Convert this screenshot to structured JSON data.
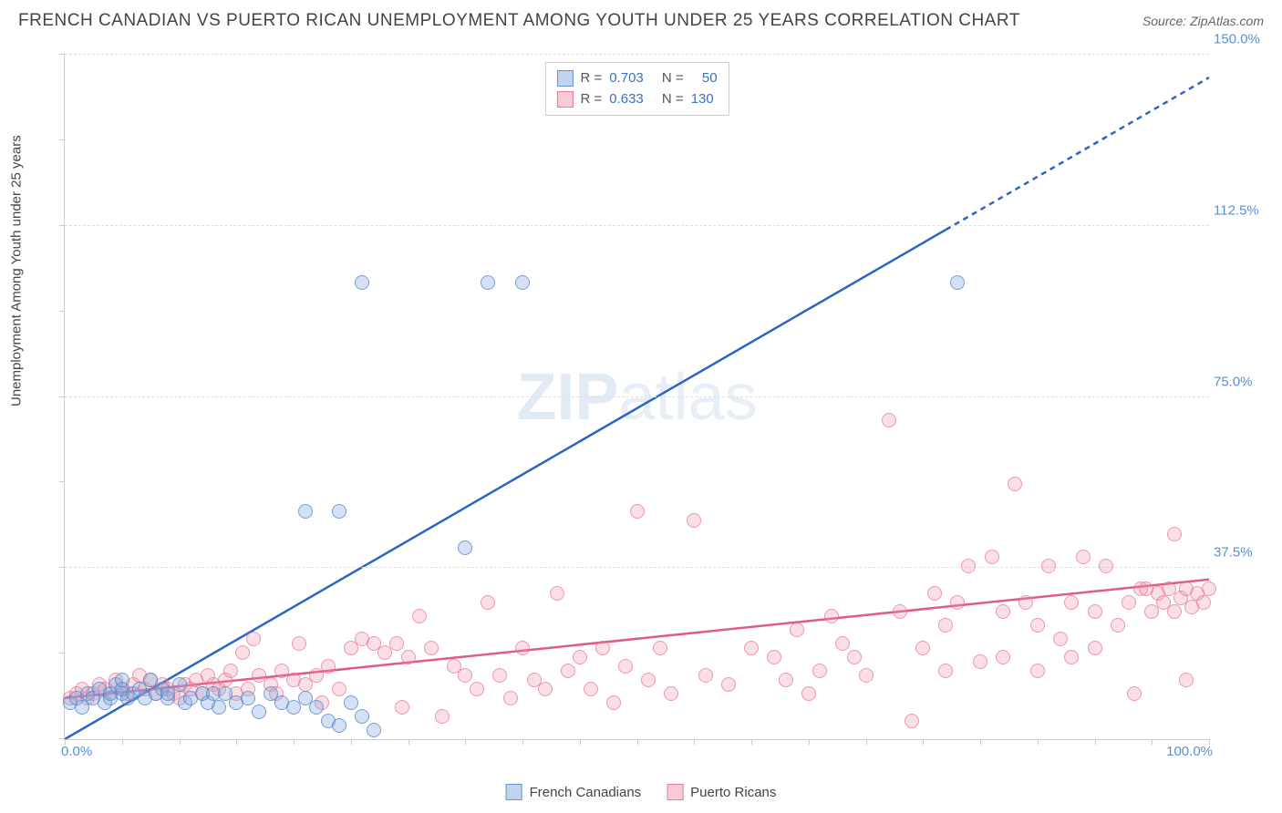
{
  "header": {
    "title": "FRENCH CANADIAN VS PUERTO RICAN UNEMPLOYMENT AMONG YOUTH UNDER 25 YEARS CORRELATION CHART",
    "source_prefix": "Source: ",
    "source_name": "ZipAtlas.com"
  },
  "axis": {
    "y_title": "Unemployment Among Youth under 25 years",
    "x_min_label": "0.0%",
    "x_max_label": "100.0%",
    "y_labels": [
      "37.5%",
      "75.0%",
      "112.5%",
      "150.0%"
    ],
    "y_positions_pct": [
      25,
      50,
      75,
      100
    ],
    "x_tick_positions_pct": [
      0,
      5,
      10,
      15,
      20,
      25,
      30,
      35,
      40,
      45,
      50,
      55,
      60,
      65,
      70,
      75,
      80,
      85,
      90,
      95,
      100
    ],
    "y_tick_positions_pct": [
      0,
      12.5,
      25,
      37.5,
      50,
      62.5,
      75,
      87.5,
      100
    ]
  },
  "stats": {
    "rows": [
      {
        "swatch": "blue",
        "r_label": "R =",
        "r_val": "0.703",
        "n_label": "N =",
        "n_val": "50"
      },
      {
        "swatch": "pink",
        "r_label": "R =",
        "r_val": "0.633",
        "n_label": "N =",
        "n_val": "130"
      }
    ]
  },
  "legend": {
    "items": [
      {
        "swatch": "blue",
        "label": "French Canadians"
      },
      {
        "swatch": "pink",
        "label": "Puerto Ricans"
      }
    ]
  },
  "watermark": {
    "part1": "ZIP",
    "part2": "atlas"
  },
  "chart": {
    "type": "scatter",
    "xlim": [
      0,
      100
    ],
    "ylim": [
      0,
      150
    ],
    "background_color": "#ffffff",
    "grid_color": "#e0e0e0",
    "marker_radius": 8,
    "colors": {
      "blue_fill": "rgba(130,170,220,0.35)",
      "blue_stroke": "rgba(80,130,200,0.7)",
      "pink_fill": "rgba(240,150,170,0.3)",
      "pink_stroke": "rgba(230,100,140,0.6)",
      "blue_line": "#2b66c4",
      "pink_line": "#e05a8a",
      "axis_label": "#5b8fd6"
    },
    "trend_lines": {
      "blue": {
        "x1": 0,
        "y1": 0,
        "x2": 100,
        "y2": 145,
        "solid_until_x": 77,
        "stroke_width": 2.5
      },
      "pink": {
        "x1": 0,
        "y1": 9,
        "x2": 100,
        "y2": 35,
        "stroke_width": 2.5
      }
    },
    "series": {
      "blue": [
        [
          0.5,
          8
        ],
        [
          1,
          9
        ],
        [
          1.5,
          7
        ],
        [
          2,
          10
        ],
        [
          2.5,
          9
        ],
        [
          3,
          11
        ],
        [
          3.5,
          8
        ],
        [
          4,
          10
        ],
        [
          4,
          9
        ],
        [
          4.5,
          12
        ],
        [
          5,
          10
        ],
        [
          5,
          11
        ],
        [
          5.5,
          9
        ],
        [
          6,
          10
        ],
        [
          6.5,
          11
        ],
        [
          7,
          9
        ],
        [
          7.5,
          13
        ],
        [
          8,
          10
        ],
        [
          8.5,
          11
        ],
        [
          9,
          9
        ],
        [
          9,
          10
        ],
        [
          10,
          12
        ],
        [
          10.5,
          8
        ],
        [
          11,
          9
        ],
        [
          12,
          10
        ],
        [
          12.5,
          8
        ],
        [
          13,
          10
        ],
        [
          13.5,
          7
        ],
        [
          14,
          10
        ],
        [
          15,
          8
        ],
        [
          16,
          9
        ],
        [
          17,
          6
        ],
        [
          18,
          10
        ],
        [
          19,
          8
        ],
        [
          20,
          7
        ],
        [
          21,
          9
        ],
        [
          22,
          7
        ],
        [
          23,
          4
        ],
        [
          24,
          3
        ],
        [
          25,
          8
        ],
        [
          26,
          5
        ],
        [
          27,
          2
        ],
        [
          21,
          50
        ],
        [
          24,
          50
        ],
        [
          35,
          42
        ],
        [
          26,
          100
        ],
        [
          37,
          100
        ],
        [
          40,
          100
        ],
        [
          78,
          100
        ],
        [
          5,
          13
        ]
      ],
      "pink": [
        [
          0.5,
          9
        ],
        [
          1,
          10
        ],
        [
          1.5,
          11
        ],
        [
          2,
          9
        ],
        [
          2.5,
          10
        ],
        [
          3,
          12
        ],
        [
          3.5,
          11
        ],
        [
          4,
          10
        ],
        [
          4.5,
          13
        ],
        [
          5,
          11
        ],
        [
          5.5,
          10
        ],
        [
          6,
          12
        ],
        [
          6.5,
          14
        ],
        [
          7,
          11
        ],
        [
          7.5,
          13
        ],
        [
          8,
          10
        ],
        [
          8.5,
          12
        ],
        [
          9,
          11
        ],
        [
          9.5,
          10
        ],
        [
          10,
          9
        ],
        [
          10.5,
          12
        ],
        [
          11,
          11
        ],
        [
          11.5,
          13
        ],
        [
          12,
          10
        ],
        [
          12.5,
          14
        ],
        [
          13,
          12
        ],
        [
          13.5,
          11
        ],
        [
          14,
          13
        ],
        [
          14.5,
          15
        ],
        [
          15,
          10
        ],
        [
          15.5,
          19
        ],
        [
          16,
          11
        ],
        [
          16.5,
          22
        ],
        [
          17,
          14
        ],
        [
          18,
          12
        ],
        [
          18.5,
          10
        ],
        [
          19,
          15
        ],
        [
          20,
          13
        ],
        [
          20.5,
          21
        ],
        [
          21,
          12
        ],
        [
          22,
          14
        ],
        [
          22.5,
          8
        ],
        [
          23,
          16
        ],
        [
          24,
          11
        ],
        [
          25,
          20
        ],
        [
          26,
          22
        ],
        [
          27,
          21
        ],
        [
          28,
          19
        ],
        [
          29,
          21
        ],
        [
          29.5,
          7
        ],
        [
          30,
          18
        ],
        [
          31,
          27
        ],
        [
          32,
          20
        ],
        [
          33,
          5
        ],
        [
          34,
          16
        ],
        [
          35,
          14
        ],
        [
          36,
          11
        ],
        [
          37,
          30
        ],
        [
          38,
          14
        ],
        [
          39,
          9
        ],
        [
          40,
          20
        ],
        [
          41,
          13
        ],
        [
          42,
          11
        ],
        [
          43,
          32
        ],
        [
          44,
          15
        ],
        [
          45,
          18
        ],
        [
          46,
          11
        ],
        [
          47,
          20
        ],
        [
          48,
          8
        ],
        [
          49,
          16
        ],
        [
          50,
          50
        ],
        [
          51,
          13
        ],
        [
          52,
          20
        ],
        [
          53,
          10
        ],
        [
          55,
          48
        ],
        [
          56,
          14
        ],
        [
          58,
          12
        ],
        [
          60,
          20
        ],
        [
          62,
          18
        ],
        [
          63,
          13
        ],
        [
          64,
          24
        ],
        [
          65,
          10
        ],
        [
          66,
          15
        ],
        [
          67,
          27
        ],
        [
          68,
          21
        ],
        [
          69,
          18
        ],
        [
          70,
          14
        ],
        [
          72,
          70
        ],
        [
          73,
          28
        ],
        [
          74,
          4
        ],
        [
          75,
          20
        ],
        [
          76,
          32
        ],
        [
          77,
          25
        ],
        [
          78,
          30
        ],
        [
          79,
          38
        ],
        [
          80,
          17
        ],
        [
          81,
          40
        ],
        [
          82,
          28
        ],
        [
          83,
          56
        ],
        [
          84,
          30
        ],
        [
          85,
          25
        ],
        [
          86,
          38
        ],
        [
          87,
          22
        ],
        [
          88,
          30
        ],
        [
          89,
          40
        ],
        [
          90,
          28
        ],
        [
          91,
          38
        ],
        [
          92,
          25
        ],
        [
          93,
          30
        ],
        [
          93.5,
          10
        ],
        [
          94,
          33
        ],
        [
          95,
          28
        ],
        [
          95.5,
          32
        ],
        [
          96,
          30
        ],
        [
          96.5,
          33
        ],
        [
          97,
          28
        ],
        [
          97.5,
          31
        ],
        [
          98,
          33
        ],
        [
          98.5,
          29
        ],
        [
          99,
          32
        ],
        [
          99.5,
          30
        ],
        [
          100,
          33
        ],
        [
          98,
          13
        ],
        [
          94.5,
          33
        ],
        [
          97,
          45
        ],
        [
          88,
          18
        ],
        [
          82,
          18
        ],
        [
          77,
          15
        ],
        [
          85,
          15
        ],
        [
          90,
          20
        ]
      ]
    }
  }
}
